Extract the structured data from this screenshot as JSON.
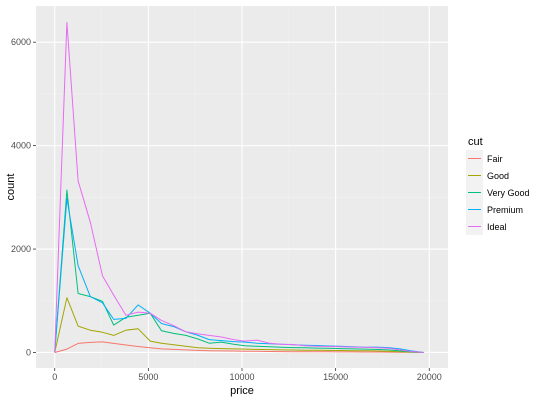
{
  "chart_data": {
    "type": "line",
    "title": "",
    "xlabel": "price",
    "ylabel": "count",
    "xlim": [
      -1000,
      21000
    ],
    "ylim": [
      -300,
      6700
    ],
    "x_ticks": [
      0,
      5000,
      10000,
      15000,
      20000
    ],
    "x_tick_labels": [
      "0",
      "5000",
      "10000",
      "15000",
      "20000"
    ],
    "y_ticks": [
      0,
      2000,
      4000,
      6000
    ],
    "y_tick_labels": [
      "0",
      "2000",
      "4000",
      "6000"
    ],
    "grid": true,
    "legend": {
      "title": "cut",
      "position": "right"
    },
    "x": [
      0,
      650,
      1250,
      1900,
      2550,
      3150,
      3800,
      4450,
      5100,
      5700,
      6350,
      7000,
      7650,
      8250,
      8900,
      9550,
      10150,
      10800,
      11450,
      12100,
      12700,
      13350,
      14000,
      14600,
      15250,
      15900,
      16550,
      17150,
      17800,
      18450,
      19050,
      19700
    ],
    "series": [
      {
        "name": "Fair",
        "color": "#F8766D",
        "values": [
          0,
          65,
          175,
          195,
          205,
          175,
          145,
          115,
          90,
          70,
          60,
          50,
          40,
          35,
          30,
          28,
          25,
          22,
          20,
          18,
          16,
          15,
          14,
          13,
          12,
          11,
          10,
          10,
          8,
          5,
          3,
          0
        ]
      },
      {
        "name": "Good",
        "color": "#A3A500",
        "values": [
          0,
          1060,
          510,
          430,
          390,
          330,
          430,
          460,
          220,
          180,
          150,
          120,
          90,
          80,
          75,
          70,
          65,
          60,
          55,
          50,
          48,
          45,
          42,
          40,
          38,
          35,
          33,
          30,
          22,
          15,
          8,
          0
        ]
      },
      {
        "name": "Very Good",
        "color": "#00BF7D",
        "values": [
          0,
          3140,
          1140,
          1080,
          990,
          530,
          680,
          720,
          760,
          420,
          370,
          330,
          260,
          180,
          200,
          160,
          130,
          120,
          110,
          100,
          95,
          90,
          85,
          80,
          75,
          70,
          65,
          60,
          50,
          30,
          12,
          0
        ]
      },
      {
        "name": "Premium",
        "color": "#00B0F6",
        "values": [
          0,
          2980,
          1680,
          1080,
          960,
          640,
          660,
          920,
          760,
          560,
          500,
          400,
          330,
          250,
          230,
          210,
          200,
          180,
          170,
          160,
          150,
          140,
          135,
          125,
          120,
          110,
          100,
          105,
          95,
          70,
          30,
          0
        ]
      },
      {
        "name": "Ideal",
        "color": "#E76BF3",
        "values": [
          0,
          6380,
          3320,
          2520,
          1480,
          1110,
          720,
          780,
          760,
          620,
          520,
          400,
          360,
          330,
          300,
          250,
          220,
          240,
          180,
          160,
          155,
          130,
          120,
          115,
          110,
          105,
          100,
          95,
          80,
          50,
          20,
          0
        ]
      }
    ]
  }
}
